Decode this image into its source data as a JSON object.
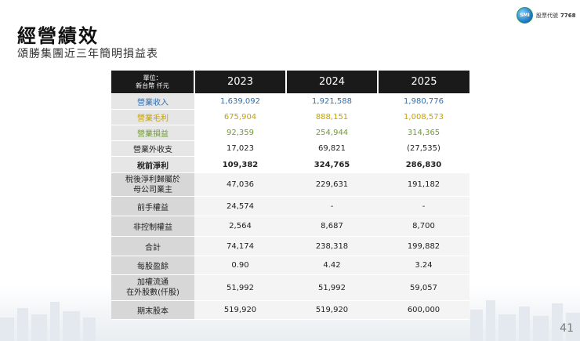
{
  "header": {
    "title": "經營績效",
    "subtitle": "頌勝集團近三年簡明損益表",
    "logo_mark": "SMI",
    "logo_label": "股票代號",
    "stock_code": "7768"
  },
  "table": {
    "unit_line1": "單位：",
    "unit_line2": "新台幣 仟元",
    "years": [
      "2023",
      "2024",
      "2025"
    ],
    "rows": [
      {
        "label": "營業收入",
        "values": [
          "1,639,092",
          "1,921,588",
          "1,980,776"
        ],
        "color": "#2e6fb3"
      },
      {
        "label": "營業毛利",
        "values": [
          "675,904",
          "888,151",
          "1,008,573"
        ],
        "color": "#c9a100"
      },
      {
        "label": "營業損益",
        "values": [
          "92,359",
          "254,944",
          "314,365"
        ],
        "color": "#6e9b2f"
      },
      {
        "label": "營業外收支",
        "values": [
          "17,023",
          "69,821",
          "(27,535)"
        ]
      },
      {
        "label": "稅前淨利",
        "values": [
          "109,382",
          "324,765",
          "286,830"
        ]
      },
      {
        "label_line1": "稅後淨利歸屬於",
        "label_line2": "母公司業主",
        "values": [
          "47,036",
          "229,631",
          "191,182"
        ]
      },
      {
        "label": "前手權益",
        "values": [
          "24,574",
          "-",
          "-"
        ]
      },
      {
        "label": "非控制權益",
        "values": [
          "2,564",
          "8,687",
          "8,700"
        ]
      },
      {
        "label": "合計",
        "values": [
          "74,174",
          "238,318",
          "199,882"
        ]
      },
      {
        "label": "每股盈餘",
        "values": [
          "0.90",
          "4.42",
          "3.24"
        ]
      },
      {
        "label_line1": "加權流通",
        "label_line2": "在外股數(仟股)",
        "values": [
          "51,992",
          "51,992",
          "59,057"
        ]
      },
      {
        "label": "期末股本",
        "values": [
          "519,920",
          "519,920",
          "600,000"
        ]
      }
    ]
  },
  "page_number": "41"
}
